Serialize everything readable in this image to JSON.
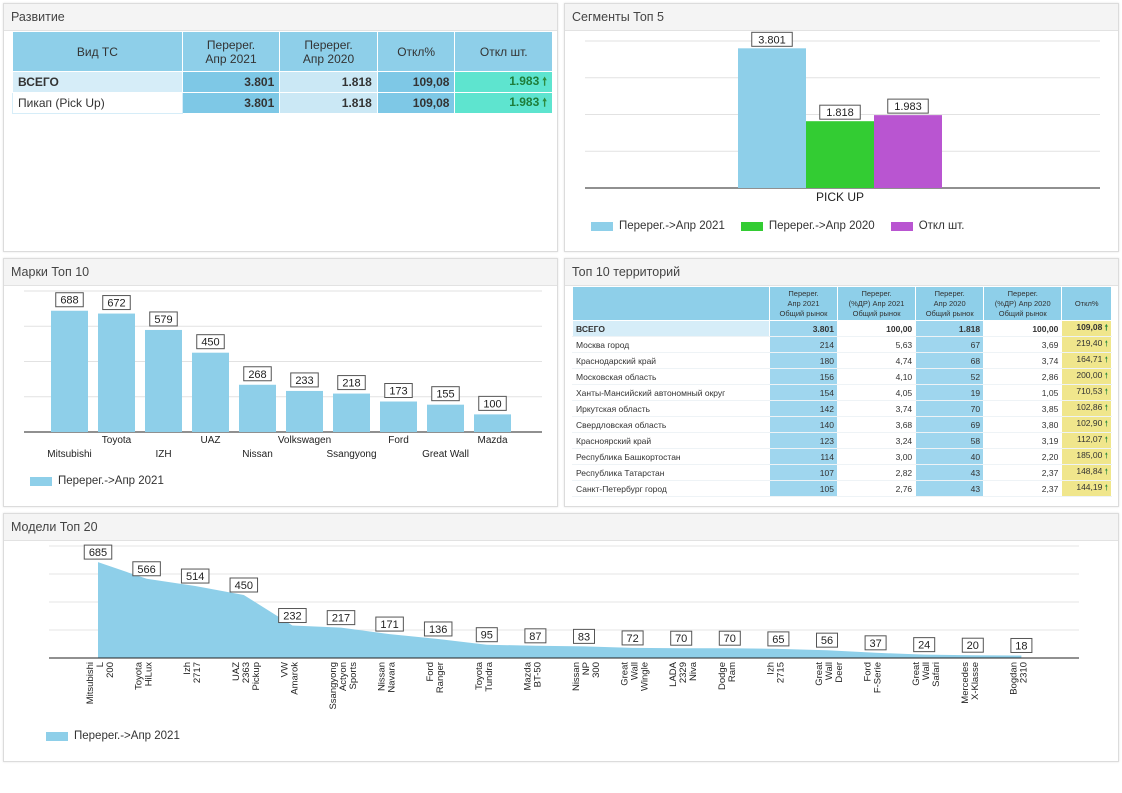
{
  "colors": {
    "blue": "#8ecfe9",
    "green": "#33cc33",
    "purple": "#b955d1"
  },
  "razvitie": {
    "title": "Развитие",
    "headers": [
      "Вид ТС",
      "Перерег.\nАпр 2021",
      "Перерег.\nАпр 2020",
      "Откл%",
      "Откл шт."
    ],
    "rows": [
      {
        "label": "ВСЕГО",
        "v2021": "3.801",
        "v2020": "1.818",
        "pct": "109,08",
        "diff": "1.983"
      },
      {
        "label": "Пикап (Pick Up)",
        "v2021": "3.801",
        "v2020": "1.818",
        "pct": "109,08",
        "diff": "1.983"
      }
    ]
  },
  "segments": {
    "title": "Сегменты Топ 5",
    "legend": [
      "Перерег.->Апр 2021",
      "Перерег.->Апр 2020",
      "Откл шт."
    ],
    "chart_data": {
      "type": "bar",
      "categories": [
        "PICK UP"
      ],
      "series": [
        {
          "name": "Перерег.->Апр 2021",
          "values": [
            3801
          ],
          "label": "3.801"
        },
        {
          "name": "Перерег.->Апр 2020",
          "values": [
            1818
          ],
          "label": "1.818"
        },
        {
          "name": "Откл шт.",
          "values": [
            1983
          ],
          "label": "1.983"
        }
      ],
      "ylim": [
        0,
        4000
      ],
      "legend_position": "bottom"
    }
  },
  "brands": {
    "title": "Марки Топ 10",
    "legend": "Перерег.->Апр 2021",
    "chart_data": {
      "type": "bar",
      "categories": [
        "Mitsubishi",
        "Toyota",
        "IZH",
        "UAZ",
        "Nissan",
        "Volkswagen",
        "Ssangyong",
        "Ford",
        "Great Wall",
        "Mazda"
      ],
      "values": [
        688,
        672,
        579,
        450,
        268,
        233,
        218,
        173,
        155,
        100
      ],
      "ylim": [
        0,
        800
      ],
      "legend_position": "bottom"
    }
  },
  "territories": {
    "title": "Топ 10 территорий",
    "headers": [
      "Перерег.\nАпр 2021\nОбщий рынок",
      "Перерег.\n(%ДР) Апр 2021\nОбщий рынок",
      "Перерег.\nАпр 2020\nОбщий рынок",
      "Перерег.\n(%ДР) Апр 2020\nОбщий рынок",
      "Откл%"
    ],
    "rows": [
      {
        "name": "ВСЕГО",
        "a": "3.801",
        "b": "100,00",
        "c": "1.818",
        "d": "100,00",
        "e": "109,08"
      },
      {
        "name": "Москва город",
        "a": "214",
        "b": "5,63",
        "c": "67",
        "d": "3,69",
        "e": "219,40"
      },
      {
        "name": "Краснодарский край",
        "a": "180",
        "b": "4,74",
        "c": "68",
        "d": "3,74",
        "e": "164,71"
      },
      {
        "name": "Московская область",
        "a": "156",
        "b": "4,10",
        "c": "52",
        "d": "2,86",
        "e": "200,00"
      },
      {
        "name": "Ханты-Мансийский автономный округ",
        "a": "154",
        "b": "4,05",
        "c": "19",
        "d": "1,05",
        "e": "710,53"
      },
      {
        "name": "Иркутская область",
        "a": "142",
        "b": "3,74",
        "c": "70",
        "d": "3,85",
        "e": "102,86"
      },
      {
        "name": "Свердловская область",
        "a": "140",
        "b": "3,68",
        "c": "69",
        "d": "3,80",
        "e": "102,90"
      },
      {
        "name": "Красноярский край",
        "a": "123",
        "b": "3,24",
        "c": "58",
        "d": "3,19",
        "e": "112,07"
      },
      {
        "name": "Республика Башкортостан",
        "a": "114",
        "b": "3,00",
        "c": "40",
        "d": "2,20",
        "e": "185,00"
      },
      {
        "name": "Республика Татарстан",
        "a": "107",
        "b": "2,82",
        "c": "43",
        "d": "2,37",
        "e": "148,84"
      },
      {
        "name": "Санкт-Петербург город",
        "a": "105",
        "b": "2,76",
        "c": "43",
        "d": "2,37",
        "e": "144,19"
      }
    ]
  },
  "models": {
    "title": "Модели Топ 20",
    "legend": "Перерег.->Апр 2021",
    "chart_data": {
      "type": "area",
      "categories": [
        "Mitsubishi L 200",
        "Toyota HiLux",
        "Izh 2717",
        "UAZ 2363 Pickup",
        "VW Amarok",
        "Ssangyong Actyon Sports",
        "Nissan Navara",
        "Ford Ranger",
        "Toyota Tundra",
        "Mazda BT-50",
        "Nissan NP 300",
        "Great Wall Wingle",
        "LADA 2329 Niva",
        "Dodge Ram",
        "Izh 2715",
        "Great Wall Deer",
        "Ford F-Serie",
        "Great Wall Safari",
        "Mercedes X-Klasse",
        "Bogdan 2310"
      ],
      "values": [
        685,
        566,
        514,
        450,
        232,
        217,
        171,
        136,
        95,
        87,
        83,
        72,
        70,
        70,
        65,
        56,
        37,
        24,
        20,
        18
      ],
      "ylim": [
        0,
        800
      ],
      "legend_position": "bottom"
    }
  }
}
